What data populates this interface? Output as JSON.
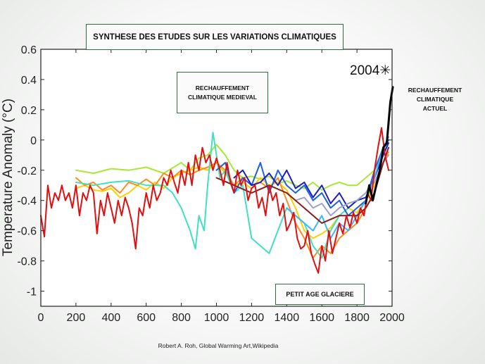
{
  "chart_data": {
    "type": "line",
    "title": "SYNTHESE DES ETUDES  SUR LES VARIATIONS CLIMATIQUES",
    "xlabel": "",
    "ylabel": "Temperature Anomaly (°C)",
    "xlim": [
      0,
      2000
    ],
    "ylim": [
      -1.1,
      0.6
    ],
    "xticks": [
      0,
      200,
      400,
      600,
      800,
      1000,
      1200,
      1400,
      1600,
      1800,
      2000
    ],
    "yticks": [
      0.6,
      0.4,
      0.2,
      0,
      -0.2,
      -0.4,
      -0.6,
      -0.8,
      -1
    ],
    "ytick_labels": [
      "0.6",
      "0.4",
      "0.2",
      "0",
      "-0.2",
      "-0.4",
      "-0.6",
      "-0.8",
      "-1"
    ],
    "grid": false,
    "series": [
      {
        "color": "#a8e834",
        "x": [
          200,
          300,
          400,
          500,
          600,
          700,
          800,
          850,
          900,
          950,
          1000,
          1050,
          1100,
          1150,
          1200,
          1250,
          1300,
          1350,
          1400,
          1450,
          1500,
          1550,
          1600,
          1650,
          1700,
          1750,
          1800,
          1850,
          1900,
          1950,
          1980
        ],
        "y": [
          -0.2,
          -0.22,
          -0.19,
          -0.2,
          -0.18,
          -0.22,
          -0.15,
          -0.2,
          -0.12,
          -0.1,
          -0.03,
          -0.1,
          -0.2,
          -0.25,
          -0.24,
          -0.26,
          -0.24,
          -0.29,
          -0.27,
          -0.3,
          -0.32,
          -0.28,
          -0.33,
          -0.3,
          -0.28,
          -0.3,
          -0.3,
          -0.25,
          -0.2,
          -0.05,
          0
        ]
      },
      {
        "color": "#ffd000",
        "x": [
          200,
          250,
          300,
          350,
          400,
          450,
          500,
          550,
          600,
          650,
          700,
          750,
          800,
          850,
          900,
          950,
          1000,
          1050,
          1100,
          1150,
          1200,
          1250,
          1300,
          1350,
          1400,
          1450,
          1500,
          1550,
          1600,
          1650,
          1700,
          1750,
          1800,
          1850,
          1900,
          1950,
          1980
        ],
        "y": [
          -0.32,
          -0.3,
          -0.33,
          -0.34,
          -0.32,
          -0.38,
          -0.35,
          -0.3,
          -0.33,
          -0.28,
          -0.32,
          -0.25,
          -0.22,
          -0.2,
          -0.18,
          -0.2,
          -0.15,
          -0.22,
          -0.3,
          -0.28,
          -0.32,
          -0.25,
          -0.3,
          -0.28,
          -0.33,
          -0.45,
          -0.6,
          -0.65,
          -0.62,
          -0.58,
          -0.5,
          -0.45,
          -0.48,
          -0.4,
          -0.3,
          -0.15,
          -0.05
        ]
      },
      {
        "color": "#ff8c1a",
        "x": [
          200,
          250,
          300,
          350,
          400,
          450,
          500,
          550,
          600,
          650,
          700,
          750,
          800,
          850,
          900,
          950,
          1000,
          1050,
          1100,
          1150,
          1200,
          1250,
          1300,
          1350,
          1400,
          1450,
          1500,
          1550,
          1600,
          1650,
          1700,
          1750,
          1800,
          1850,
          1900,
          1950,
          1980
        ],
        "y": [
          -0.25,
          -0.3,
          -0.28,
          -0.33,
          -0.3,
          -0.35,
          -0.28,
          -0.3,
          -0.26,
          -0.3,
          -0.22,
          -0.25,
          -0.2,
          -0.23,
          -0.2,
          -0.18,
          -0.15,
          -0.2,
          -0.3,
          -0.25,
          -0.3,
          -0.28,
          -0.32,
          -0.25,
          -0.4,
          -0.55,
          -0.65,
          -0.78,
          -0.7,
          -0.75,
          -0.65,
          -0.6,
          -0.55,
          -0.45,
          -0.35,
          -0.15,
          -0.08
        ]
      },
      {
        "color": "#40e0c0",
        "x": [
          200,
          300,
          400,
          500,
          600,
          700,
          750,
          800,
          850,
          880,
          900,
          930,
          950,
          980,
          1000,
          1020,
          1050,
          1100,
          1150,
          1200,
          1250,
          1300,
          1350,
          1400,
          1450,
          1500,
          1550,
          1600,
          1650,
          1700,
          1750,
          1800,
          1850,
          1900,
          1950,
          1980
        ],
        "y": [
          -0.28,
          -0.3,
          -0.28,
          -0.27,
          -0.3,
          -0.3,
          -0.35,
          -0.45,
          -0.6,
          -0.72,
          -0.5,
          -0.6,
          -0.3,
          0.05,
          -0.1,
          -0.25,
          -0.2,
          -0.35,
          -0.3,
          -0.65,
          -0.7,
          -0.75,
          -0.6,
          -0.45,
          -0.5,
          -0.55,
          -0.7,
          -0.78,
          -0.6,
          -0.5,
          -0.45,
          -0.4,
          -0.35,
          -0.25,
          -0.1,
          0
        ]
      },
      {
        "color": "#1f5fe0",
        "x": [
          1000,
          1050,
          1100,
          1150,
          1200,
          1250,
          1300,
          1350,
          1400,
          1450,
          1500,
          1550,
          1600,
          1650,
          1700,
          1750,
          1800,
          1850,
          1900,
          1950,
          1980
        ],
        "y": [
          -0.2,
          -0.15,
          -0.35,
          -0.25,
          -0.3,
          -0.15,
          -0.35,
          -0.2,
          -0.3,
          -0.35,
          -0.3,
          -0.4,
          -0.35,
          -0.45,
          -0.4,
          -0.5,
          -0.45,
          -0.4,
          -0.2,
          -0.05,
          0.0
        ]
      },
      {
        "color": "#1c1cc8",
        "x": [
          1100,
          1150,
          1200,
          1250,
          1300,
          1350,
          1400,
          1450,
          1500,
          1550,
          1600,
          1650,
          1700,
          1750,
          1800,
          1850,
          1900,
          1950,
          1980
        ],
        "y": [
          -0.25,
          -0.2,
          -0.3,
          -0.28,
          -0.22,
          -0.3,
          -0.2,
          -0.32,
          -0.28,
          -0.38,
          -0.3,
          -0.42,
          -0.35,
          -0.45,
          -0.4,
          -0.38,
          -0.25,
          -0.1,
          -0.02
        ]
      },
      {
        "color": "#38b8ff",
        "x": [
          1400,
          1450,
          1500,
          1550,
          1600,
          1650,
          1700,
          1750,
          1800,
          1850,
          1900,
          1950,
          1980
        ],
        "y": [
          -0.45,
          -0.5,
          -0.55,
          -0.6,
          -0.5,
          -0.65,
          -0.55,
          -0.6,
          -0.5,
          -0.4,
          -0.25,
          -0.05,
          0.02
        ]
      },
      {
        "color": "#a0a0c8",
        "x": [
          1400,
          1450,
          1500,
          1550,
          1600,
          1650,
          1700,
          1750,
          1800,
          1850,
          1900,
          1950,
          1980
        ],
        "y": [
          -0.35,
          -0.4,
          -0.38,
          -0.45,
          -0.42,
          -0.5,
          -0.45,
          -0.42,
          -0.4,
          -0.35,
          -0.28,
          -0.15,
          -0.1
        ]
      },
      {
        "color": "#8b1a1a",
        "x": [
          1000,
          1100,
          1200,
          1300,
          1400,
          1500,
          1600,
          1700,
          1800,
          1850,
          1900,
          1950,
          1980
        ],
        "y": [
          -0.25,
          -0.3,
          -0.35,
          -0.3,
          -0.35,
          -0.45,
          -0.55,
          -0.5,
          -0.5,
          -0.45,
          -0.35,
          -0.15,
          -0.05
        ]
      },
      {
        "color": "#e01010",
        "x": [
          0,
          20,
          40,
          60,
          80,
          100,
          120,
          140,
          160,
          180,
          200,
          220,
          240,
          260,
          280,
          300,
          320,
          340,
          360,
          380,
          400,
          420,
          440,
          460,
          480,
          500,
          520,
          540,
          560,
          580,
          600,
          620,
          640,
          660,
          680,
          700,
          720,
          740,
          760,
          780,
          800,
          820,
          840,
          860,
          880,
          900,
          920,
          940,
          960,
          980,
          1000,
          1020,
          1040,
          1060,
          1080,
          1100,
          1120,
          1140,
          1160,
          1180,
          1200,
          1220,
          1240,
          1260,
          1280,
          1300,
          1320,
          1340,
          1360,
          1380,
          1400,
          1420,
          1440,
          1460,
          1480,
          1500,
          1520,
          1540,
          1560,
          1580,
          1600,
          1620,
          1640,
          1660,
          1680,
          1700,
          1720,
          1740,
          1760,
          1780,
          1800,
          1820,
          1840,
          1860,
          1880,
          1900,
          1920,
          1940,
          1960,
          1980
        ],
        "y": [
          -0.5,
          -0.64,
          -0.3,
          -0.45,
          -0.35,
          -0.4,
          -0.3,
          -0.4,
          -0.35,
          -0.45,
          -0.3,
          -0.5,
          -0.35,
          -0.4,
          -0.3,
          -0.35,
          -0.62,
          -0.4,
          -0.5,
          -0.35,
          -0.45,
          -0.55,
          -0.4,
          -0.5,
          -0.38,
          -0.45,
          -0.55,
          -0.72,
          -0.45,
          -0.5,
          -0.35,
          -0.45,
          -0.3,
          -0.4,
          -0.35,
          -0.25,
          -0.3,
          -0.2,
          -0.28,
          -0.35,
          -0.2,
          -0.3,
          -0.15,
          -0.3,
          -0.1,
          -0.2,
          -0.05,
          -0.15,
          -0.1,
          -0.2,
          -0.12,
          -0.2,
          -0.3,
          -0.15,
          -0.28,
          -0.35,
          -0.2,
          -0.3,
          -0.25,
          -0.4,
          -0.32,
          -0.3,
          -0.45,
          -0.38,
          -0.5,
          -0.3,
          -0.4,
          -0.35,
          -0.5,
          -0.42,
          -0.6,
          -0.55,
          -0.48,
          -0.65,
          -0.72,
          -0.7,
          -0.6,
          -0.75,
          -0.82,
          -0.88,
          -0.7,
          -0.8,
          -0.6,
          -0.75,
          -0.65,
          -0.55,
          -0.62,
          -0.5,
          -0.58,
          -0.48,
          -0.55,
          -0.45,
          -0.5,
          -0.35,
          -0.4,
          -0.2,
          -0.05,
          0.08,
          -0.1,
          -0.2
        ]
      },
      {
        "color": "#000000",
        "x": [
          1850,
          1870,
          1890,
          1910,
          1930,
          1950,
          1970,
          1990,
          2004
        ],
        "y": [
          -0.42,
          -0.3,
          -0.4,
          -0.3,
          -0.2,
          -0.05,
          -0.02,
          0.25,
          0.35
        ]
      }
    ],
    "marker": {
      "label": "2004",
      "x": 2004,
      "y": 0.45,
      "symbol": "✳"
    },
    "annotations": {
      "medieval": [
        "RECHAUFFEMENT",
        "CLIMATIQUE MEDIEVAL"
      ],
      "glaciere": "PETIT AGE GLACIERE",
      "actuel": [
        "RECHAUFFEMENT",
        "CLIMATIQUE",
        "ACTUEL"
      ]
    },
    "credit": "Robert A. Roh, Global Warming Art,Wikipedia"
  }
}
